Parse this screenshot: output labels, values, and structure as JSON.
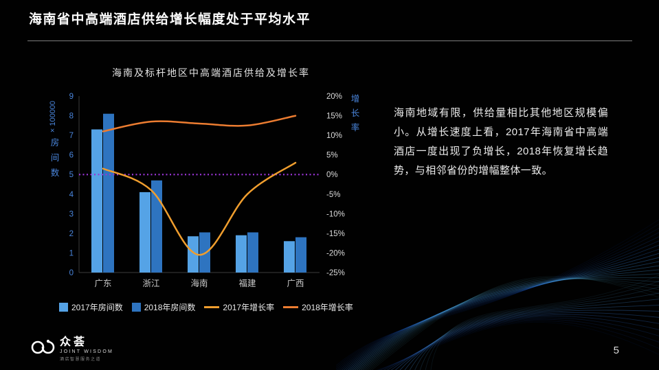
{
  "slide": {
    "title": "海南省中高端酒店供给增长幅度处于平均水平",
    "page_number": "5",
    "commentary": "海南地域有限，供给量相比其他地区规模偏小。从增长速度上看，2017年海南省中高端酒店一度出现了负增长，2018年恢复增长趋势，与相邻省份的增幅整体一致。"
  },
  "logo": {
    "name": "众荟",
    "subtitle": "JOINT WISDOM",
    "tagline": "酒店智慧服务之道"
  },
  "chart_data": {
    "type": "combo-bar-line",
    "title": "海南及标杆地区中高端酒店供给及增长率",
    "categories": [
      "广东",
      "浙江",
      "海南",
      "福建",
      "广西"
    ],
    "left_axis": {
      "unit": "× 100000",
      "label": "房间数",
      "min": 0,
      "max": 9,
      "ticks": [
        9,
        8,
        7,
        6,
        5,
        4,
        3,
        2,
        1,
        0
      ],
      "color": "#4a86dd"
    },
    "right_axis": {
      "label": "增长率",
      "min": -25,
      "max": 20,
      "ticks": [
        "20%",
        "15%",
        "10%",
        "5%",
        "0%",
        "-5%",
        "-10%",
        "-15%",
        "-20%",
        "-25%"
      ],
      "color": "#4a86dd",
      "tick_color": "#dcdcdc"
    },
    "series": [
      {
        "name": "2017年房间数",
        "type": "bar",
        "axis": "left",
        "color": "#55a3e6",
        "values": [
          7.3,
          4.1,
          1.85,
          1.9,
          1.6
        ]
      },
      {
        "name": "2018年房间数",
        "type": "bar",
        "axis": "left",
        "color": "#2e74c0",
        "values": [
          8.1,
          4.7,
          2.05,
          2.05,
          1.8
        ]
      },
      {
        "name": "2017年增长率",
        "type": "line",
        "axis": "right",
        "color": "#f09e2e",
        "values": [
          1.5,
          -4,
          -20.5,
          -5,
          3
        ]
      },
      {
        "name": "2018年增长率",
        "type": "line",
        "axis": "right",
        "color": "#ed7d31",
        "values": [
          11,
          13.5,
          13,
          12.5,
          15
        ]
      }
    ],
    "reference_line": {
      "value": 0,
      "axis": "right",
      "color": "#9a35d6",
      "style": "dotted"
    },
    "legend_position": "bottom",
    "grid": false
  }
}
